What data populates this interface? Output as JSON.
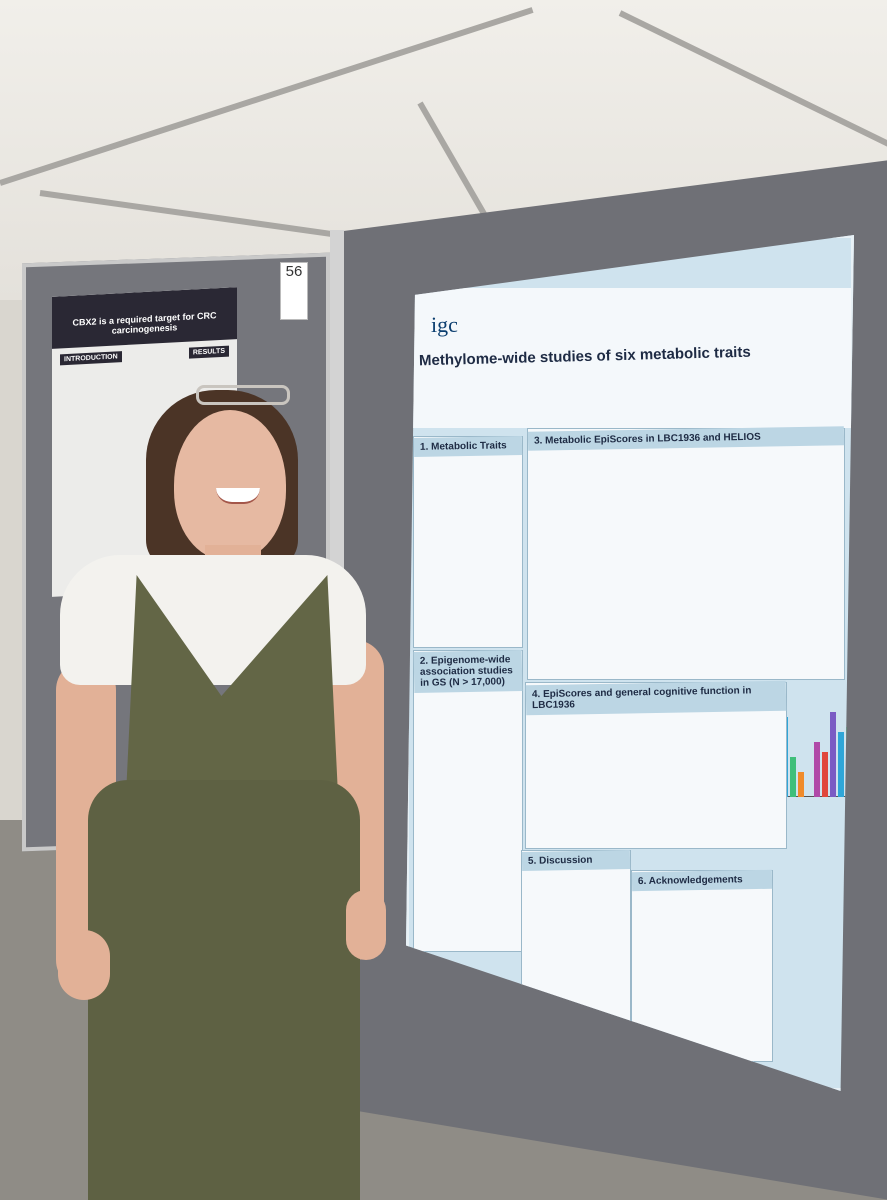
{
  "board": {
    "number": "56"
  },
  "left_poster": {
    "title": "CBX2 is a required target for CRC carcinogenesis",
    "sections": [
      "INTRODUCTION",
      "RESULTS"
    ]
  },
  "poster": {
    "logo": "igc",
    "title": "Methylome-wide studies of six metabolic traits",
    "sections": [
      {
        "title": "1. Metabolic Traits"
      },
      {
        "title": "2. Epigenome-wide association studies in GS (N > 17,000)"
      },
      {
        "title": "3. Metabolic EpiScores in LBC1936 and HELIOS"
      },
      {
        "title": "4. EpiScores and general cognitive function in LBC1936"
      },
      {
        "title": "5. Discussion"
      },
      {
        "title": "6. Acknowledgements"
      }
    ],
    "bar_colors": [
      "#e0463b",
      "#7a5bc4",
      "#2fa6d8",
      "#3fbf7a",
      "#f08b2a",
      "#b04aa8"
    ]
  }
}
